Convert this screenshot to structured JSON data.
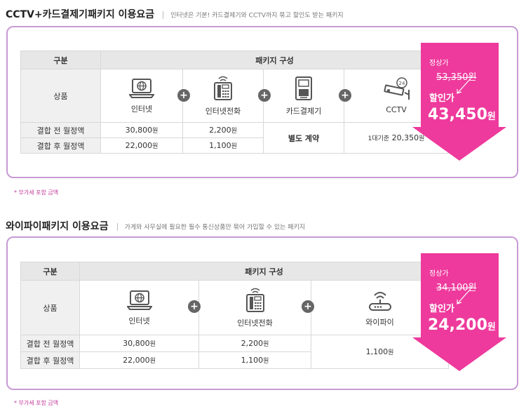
{
  "colors": {
    "accent": "#ee3a9c",
    "border": "#c79ad5",
    "sale_text": "#ffee55",
    "note": "#c0399b"
  },
  "section1": {
    "title": "CCTV+카드결제기패키지 이용요금",
    "subtitle": "인터넷은 기본! 카드결제기와 CCTV까지 묶고 할인도 받는 패키지",
    "table": {
      "col_header": "구분",
      "package_header": "패키지 구성",
      "row_product": "상품",
      "row_before": "결합 전 월정액",
      "row_after": "결합 후 월정액",
      "items": [
        {
          "name": "인터넷",
          "icon": "laptop-globe-icon",
          "before": "30,800",
          "after": "22,000"
        },
        {
          "name": "인터넷전화",
          "icon": "desk-phone-icon",
          "before": "2,200",
          "after": "1,100"
        },
        {
          "name": "카드결제기",
          "icon": "card-terminal-icon",
          "merged": "별도 계약"
        },
        {
          "name": "CCTV",
          "icon": "cctv-camera-icon",
          "merged_prefix": "1대기준",
          "merged_value": "20,350"
        }
      ],
      "won": "원",
      "plus_sign": "+"
    },
    "price": {
      "regular_label": "정상가",
      "regular": "53,350원",
      "sale_label": "할인가",
      "sale": "43,450",
      "sale_unit": "원"
    },
    "note": "* 부가세 포함 금액"
  },
  "section2": {
    "title": "와이파이패키지 이용요금",
    "subtitle": "가게와 사무실에 필요한 필수 통신상품만 묶어 가입할 수 있는 패키지",
    "table": {
      "col_header": "구분",
      "package_header": "패키지 구성",
      "row_product": "상품",
      "row_before": "결합 전 월정액",
      "row_after": "결합 후 월정액",
      "items": [
        {
          "name": "인터넷",
          "icon": "laptop-globe-icon",
          "before": "30,800",
          "after": "22,000"
        },
        {
          "name": "인터넷전화",
          "icon": "desk-phone-icon",
          "before": "2,200",
          "after": "1,100"
        },
        {
          "name": "와이파이",
          "icon": "wifi-router-icon",
          "merged": "1,100"
        }
      ],
      "won": "원",
      "plus_sign": "+"
    },
    "price": {
      "regular_label": "정상가",
      "regular": "34,100원",
      "sale_label": "할인가",
      "sale": "24,200",
      "sale_unit": "원"
    },
    "note": "* 부가세 포함 금액"
  }
}
